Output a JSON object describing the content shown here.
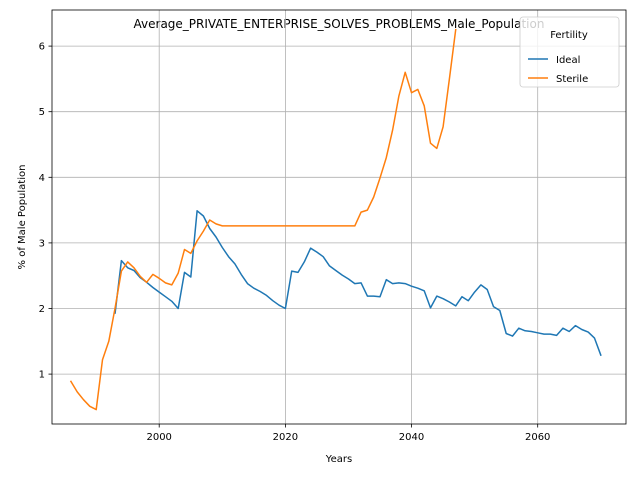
{
  "chart_data": {
    "type": "line",
    "title": "Average_PRIVATE_ENTERPRISE_SOLVES_PROBLEMS_Male_Population",
    "xlabel": "Years",
    "ylabel": "% of Male Population",
    "xlim": [
      1983,
      2074
    ],
    "ylim": [
      0.24,
      6.55
    ],
    "xticks": [
      2000,
      2020,
      2040,
      2060
    ],
    "yticks": [
      1,
      2,
      3,
      4,
      5,
      6
    ],
    "grid": true,
    "legend": {
      "title": "Fertility",
      "position": "top-right"
    },
    "series": [
      {
        "name": "Ideal",
        "color": "#1f77b4",
        "x": [
          1993,
          1994,
          1995,
          1996,
          1997,
          1998,
          1999,
          2000,
          2001,
          2002,
          2003,
          2004,
          2005,
          2006,
          2007,
          2008,
          2009,
          2010,
          2011,
          2012,
          2013,
          2014,
          2015,
          2016,
          2017,
          2018,
          2019,
          2020,
          2021,
          2022,
          2023,
          2024,
          2025,
          2026,
          2027,
          2028,
          2029,
          2030,
          2031,
          2032,
          2033,
          2034,
          2035,
          2036,
          2037,
          2038,
          2039,
          2040,
          2041,
          2042,
          2043,
          2044,
          2045,
          2046,
          2047,
          2048,
          2049,
          2050,
          2051,
          2052,
          2053,
          2054,
          2055,
          2056,
          2057,
          2058,
          2059,
          2060,
          2061,
          2062,
          2063,
          2064,
          2065,
          2066,
          2067,
          2068,
          2069,
          2070
        ],
        "y": [
          1.93,
          2.73,
          2.62,
          2.58,
          2.47,
          2.4,
          2.32,
          2.25,
          2.18,
          2.11,
          2.0,
          2.55,
          2.48,
          3.49,
          3.41,
          3.22,
          3.09,
          2.93,
          2.79,
          2.68,
          2.52,
          2.38,
          2.31,
          2.26,
          2.2,
          2.12,
          2.05,
          2.0,
          2.57,
          2.55,
          2.71,
          2.92,
          2.86,
          2.79,
          2.65,
          2.58,
          2.51,
          2.45,
          2.38,
          2.39,
          2.19,
          2.19,
          2.18,
          2.44,
          2.38,
          2.39,
          2.38,
          2.34,
          2.31,
          2.27,
          2.01,
          2.19,
          2.15,
          2.1,
          2.04,
          2.18,
          2.12,
          2.25,
          2.36,
          2.29,
          2.03,
          1.97,
          1.62,
          1.58,
          1.7,
          1.66,
          1.65,
          1.63,
          1.61,
          1.61,
          1.59,
          1.7,
          1.65,
          1.74,
          1.68,
          1.64,
          1.55,
          1.29
        ]
      },
      {
        "name": "Sterile",
        "color": "#ff7f0e",
        "x": [
          1986,
          1987,
          1988,
          1989,
          1990,
          1991,
          1992,
          1993,
          1994,
          1995,
          1996,
          1997,
          1998,
          1999,
          2000,
          2001,
          2002,
          2003,
          2004,
          2005,
          2006,
          2007,
          2008,
          2009,
          2010,
          2011,
          2012,
          2013,
          2014,
          2015,
          2016,
          2017,
          2018,
          2019,
          2020,
          2021,
          2022,
          2023,
          2024,
          2025,
          2026,
          2027,
          2028,
          2029,
          2030,
          2031,
          2032,
          2033,
          2034,
          2035,
          2036,
          2037,
          2038,
          2039,
          2040,
          2041,
          2042,
          2043,
          2044,
          2045,
          2046,
          2047
        ],
        "y": [
          0.89,
          0.73,
          0.61,
          0.51,
          0.46,
          1.22,
          1.5,
          2.01,
          2.57,
          2.71,
          2.62,
          2.49,
          2.4,
          2.52,
          2.46,
          2.39,
          2.36,
          2.54,
          2.9,
          2.84,
          3.03,
          3.18,
          3.35,
          3.29,
          3.26,
          3.26,
          3.26,
          3.26,
          3.26,
          3.26,
          3.26,
          3.26,
          3.26,
          3.26,
          3.26,
          3.26,
          3.26,
          3.26,
          3.26,
          3.26,
          3.26,
          3.26,
          3.26,
          3.26,
          3.26,
          3.26,
          3.47,
          3.5,
          3.7,
          3.99,
          4.3,
          4.72,
          5.24,
          5.6,
          5.29,
          5.34,
          5.09,
          4.52,
          4.44,
          4.77,
          5.5,
          6.25
        ]
      }
    ]
  }
}
